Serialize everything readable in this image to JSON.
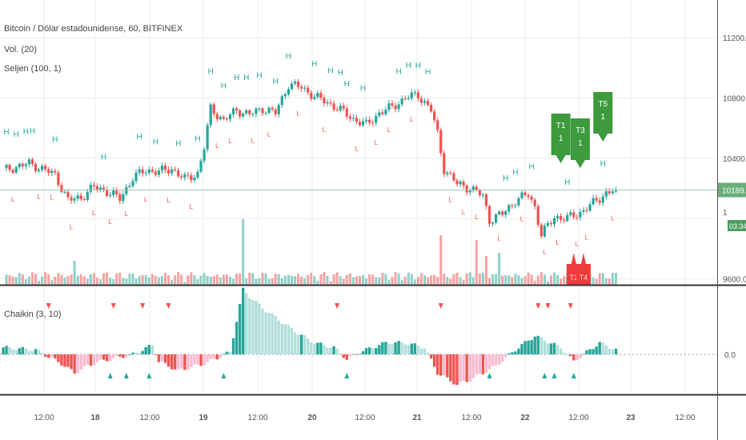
{
  "header": {
    "symbol": "Bitcoin / Dólar estadounidense, 60, BITFINEX",
    "vol": "Vol. (20)",
    "seljen": "Seljen (100, 1)",
    "chaikin": "Chaikin (3, 10)"
  },
  "colors": {
    "up": "#26a69a",
    "down": "#ef5350",
    "label_green": "#3d9a3d",
    "grid": "#ebebeb",
    "price_line": "#9ec9b5",
    "axis_text": "#555555"
  },
  "chart_data": [
    {
      "type": "candlestick",
      "price_axis": {
        "ticks": [
          9600,
          10000,
          10400,
          10800,
          11200
        ],
        "tick_labels": [
          "9600.0",
          "",
          "10400.0",
          "10800.0",
          "11200.0"
        ],
        "ylim": [
          9560,
          11450
        ]
      },
      "time_axis": {
        "labels": [
          "12:00",
          "18",
          "12:00",
          "19",
          "12:00",
          "20",
          "12:00",
          "21",
          "12:00",
          "22",
          "12:00",
          "23",
          "12:00"
        ]
      },
      "last_price": "10189.0",
      "countdown": "03:34",
      "price_badge_prefix": "1",
      "close_anchors": [
        [
          0,
          10320
        ],
        [
          8,
          10365
        ],
        [
          12,
          10330
        ],
        [
          16,
          10290
        ],
        [
          20,
          10120
        ],
        [
          24,
          10140
        ],
        [
          28,
          10210
        ],
        [
          32,
          10180
        ],
        [
          36,
          10130
        ],
        [
          40,
          10270
        ],
        [
          44,
          10320
        ],
        [
          48,
          10310
        ],
        [
          52,
          10330
        ],
        [
          56,
          10260
        ],
        [
          60,
          10300
        ],
        [
          62,
          10470
        ],
        [
          64,
          10730
        ],
        [
          68,
          10650
        ],
        [
          72,
          10720
        ],
        [
          76,
          10690
        ],
        [
          80,
          10730
        ],
        [
          84,
          10700
        ],
        [
          88,
          10890
        ],
        [
          92,
          10870
        ],
        [
          96,
          10810
        ],
        [
          100,
          10770
        ],
        [
          104,
          10720
        ],
        [
          108,
          10660
        ],
        [
          112,
          10620
        ],
        [
          116,
          10700
        ],
        [
          120,
          10740
        ],
        [
          124,
          10800
        ],
        [
          128,
          10820
        ],
        [
          132,
          10720
        ],
        [
          134,
          10560
        ],
        [
          136,
          10330
        ],
        [
          140,
          10230
        ],
        [
          144,
          10200
        ],
        [
          148,
          10150
        ],
        [
          150,
          9990
        ],
        [
          154,
          10030
        ],
        [
          158,
          10120
        ],
        [
          162,
          10160
        ],
        [
          164,
          10080
        ],
        [
          166,
          9890
        ],
        [
          170,
          10010
        ],
        [
          174,
          10000
        ],
        [
          178,
          10040
        ],
        [
          182,
          10100
        ],
        [
          186,
          10170
        ],
        [
          189,
          10189
        ]
      ],
      "highs_marker_text": "H",
      "lows_marker_text": "L",
      "markers_high_x": [
        1,
        4,
        7,
        9,
        16,
        31,
        42,
        47,
        54,
        60,
        64,
        68,
        72,
        75,
        79,
        84,
        88,
        96,
        101,
        104,
        106,
        111,
        122,
        125,
        128,
        131,
        155,
        158,
        163,
        174,
        185
      ],
      "markers_low_x": [
        3,
        11,
        15,
        21,
        28,
        33,
        38,
        44,
        51,
        58,
        66,
        70,
        77,
        82,
        91,
        99,
        109,
        115,
        119,
        126,
        138,
        142,
        146,
        153,
        160,
        167,
        171,
        177,
        180,
        188
      ],
      "annotations_up": [
        {
          "text": "T1",
          "sub": "1",
          "bar": 172
        },
        {
          "text": "T3",
          "sub": "1",
          "bar": 178
        },
        {
          "text": "T5",
          "sub": "1",
          "bar": 185
        }
      ],
      "annotations_down": [
        {
          "text": "T2",
          "bar": 176
        },
        {
          "text": "T4",
          "bar": 179
        }
      ]
    },
    {
      "type": "histogram",
      "name": "Chaikin (3, 10)",
      "axis": {
        "ticks": [
          0
        ],
        "tick_labels": [
          "0.0"
        ]
      },
      "anchors": [
        [
          0,
          3
        ],
        [
          10,
          2
        ],
        [
          14,
          -1
        ],
        [
          18,
          -4
        ],
        [
          22,
          -8
        ],
        [
          26,
          -5
        ],
        [
          30,
          -3
        ],
        [
          40,
          0
        ],
        [
          46,
          4
        ],
        [
          48,
          -3
        ],
        [
          54,
          -7
        ],
        [
          62,
          -4
        ],
        [
          70,
          1
        ],
        [
          74,
          28
        ],
        [
          76,
          25
        ],
        [
          80,
          20
        ],
        [
          90,
          10
        ],
        [
          96,
          5
        ],
        [
          102,
          3
        ],
        [
          106,
          -2
        ],
        [
          110,
          1
        ],
        [
          118,
          5
        ],
        [
          124,
          5
        ],
        [
          130,
          3
        ],
        [
          134,
          -8
        ],
        [
          140,
          -13
        ],
        [
          144,
          -11
        ],
        [
          152,
          -5
        ],
        [
          158,
          2
        ],
        [
          164,
          8
        ],
        [
          172,
          3
        ],
        [
          176,
          -3
        ],
        [
          180,
          1
        ],
        [
          184,
          5
        ],
        [
          189,
          2
        ]
      ],
      "up_triangles_x": [
        33,
        38,
        45,
        68,
        106,
        150,
        167,
        170,
        176
      ],
      "down_triangles_x": [
        14,
        34,
        43,
        51,
        103,
        135,
        165,
        168,
        175
      ]
    }
  ]
}
